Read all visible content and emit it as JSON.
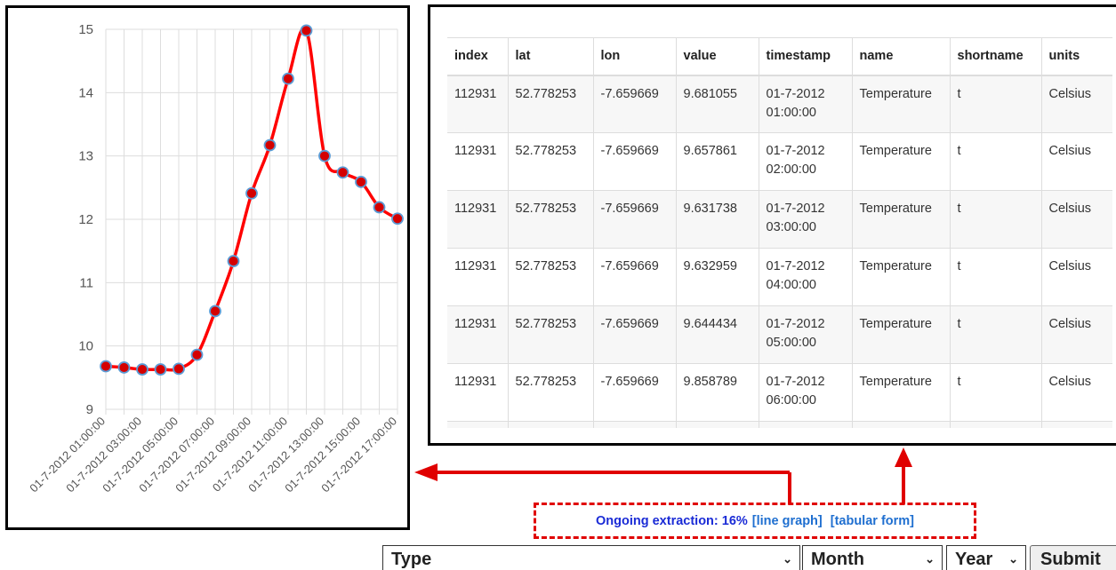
{
  "chart_data": {
    "type": "line",
    "title": "",
    "xlabel": "",
    "ylabel": "",
    "ylim": [
      9,
      15
    ],
    "yticks": [
      "9",
      "10",
      "11",
      "12",
      "13",
      "14",
      "15"
    ],
    "x": [
      "01-7-2012 01:00:00",
      "01-7-2012 02:00:00",
      "01-7-2012 03:00:00",
      "01-7-2012 04:00:00",
      "01-7-2012 05:00:00",
      "01-7-2012 06:00:00",
      "01-7-2012 07:00:00",
      "01-7-2012 08:00:00",
      "01-7-2012 09:00:00",
      "01-7-2012 10:00:00",
      "01-7-2012 11:00:00",
      "01-7-2012 12:00:00",
      "01-7-2012 13:00:00",
      "01-7-2012 14:00:00",
      "01-7-2012 15:00:00",
      "01-7-2012 16:00:00",
      "01-7-2012 17:00:00"
    ],
    "xtick_labels": [
      "01-7-2012 01:00:00",
      "01-7-2012 03:00:00",
      "01-7-2012 05:00:00",
      "01-7-2012 07:00:00",
      "01-7-2012 09:00:00",
      "01-7-2012 11:00:00",
      "01-7-2012 13:00:00",
      "01-7-2012 15:00:00",
      "01-7-2012 17:00:00"
    ],
    "series": [
      {
        "values": [
          9.68,
          9.66,
          9.63,
          9.63,
          9.64,
          9.86,
          10.55,
          11.34,
          12.41,
          13.17,
          14.22,
          14.98,
          13.0,
          12.74,
          12.59,
          12.19,
          12.01
        ]
      }
    ],
    "line_color": "#ff0000",
    "marker_color": "#d40000",
    "marker_edge": "#5b9bd5",
    "grid": true
  },
  "table": {
    "headers": [
      "index",
      "lat",
      "lon",
      "value",
      "timestamp",
      "name",
      "shortname",
      "units"
    ],
    "rows": [
      [
        "112931",
        "52.778253",
        "-7.659669",
        "9.681055",
        "01-7-2012",
        "01:00:00",
        "Temperature",
        "t",
        "Celsius"
      ],
      [
        "112931",
        "52.778253",
        "-7.659669",
        "9.657861",
        "01-7-2012",
        "02:00:00",
        "Temperature",
        "t",
        "Celsius"
      ],
      [
        "112931",
        "52.778253",
        "-7.659669",
        "9.631738",
        "01-7-2012",
        "03:00:00",
        "Temperature",
        "t",
        "Celsius"
      ],
      [
        "112931",
        "52.778253",
        "-7.659669",
        "9.632959",
        "01-7-2012",
        "04:00:00",
        "Temperature",
        "t",
        "Celsius"
      ],
      [
        "112931",
        "52.778253",
        "-7.659669",
        "9.644434",
        "01-7-2012",
        "05:00:00",
        "Temperature",
        "t",
        "Celsius"
      ],
      [
        "112931",
        "52.778253",
        "-7.659669",
        "9.858789",
        "01-7-2012",
        "06:00:00",
        "Temperature",
        "t",
        "Celsius"
      ],
      [
        "",
        "",
        "",
        "",
        "",
        "",
        "",
        "",
        ""
      ]
    ]
  },
  "status": {
    "text": "Ongoing extraction: 16%",
    "progress_percent": 16,
    "link_line_graph": "[line graph]",
    "link_tabular_form": "[tabular form]",
    "highlight_color": "#e00000"
  },
  "form": {
    "type_value": "Type",
    "month_value": "Month",
    "year_value": "Year",
    "submit_label": "Submit",
    "chevron_icon": "chevron-down-icon"
  }
}
